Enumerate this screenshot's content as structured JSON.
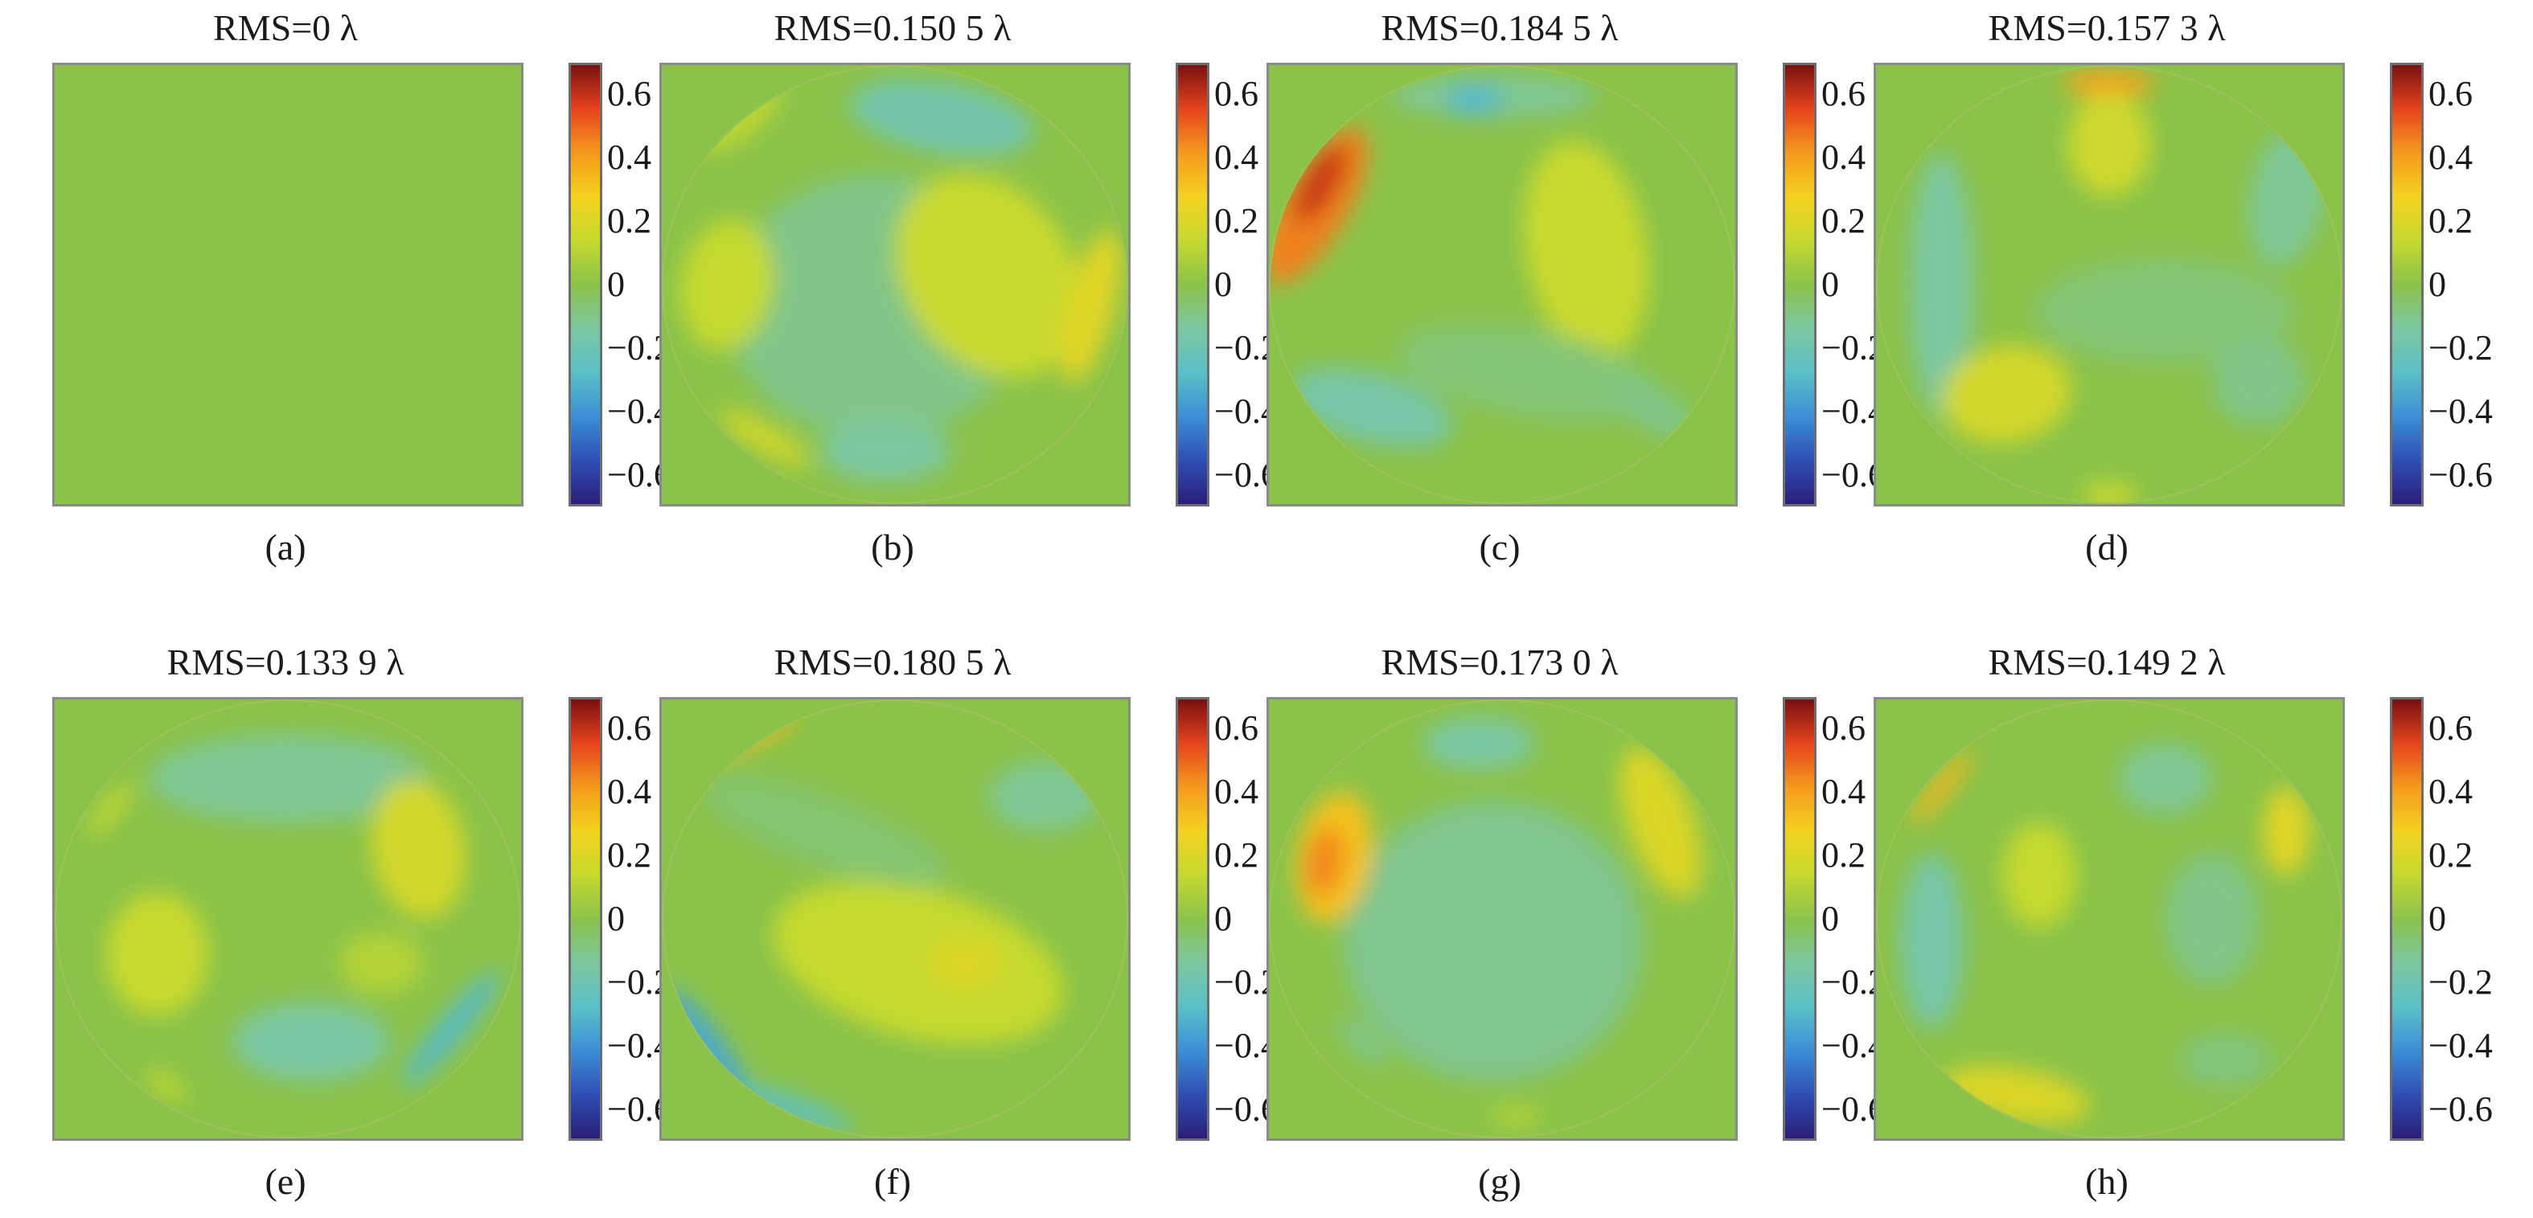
{
  "colors": {
    "background": "#8bc34a",
    "colormap": [
      "#2a1e78",
      "#2f4fb5",
      "#3b8fd6",
      "#5bc0c7",
      "#7cc6a0",
      "#8bc34a",
      "#c5d92f",
      "#f4d21f",
      "#f59a1e",
      "#e5431c",
      "#7a1010"
    ]
  },
  "colorbar_ticks": [
    "0.6",
    "0.4",
    "0.2",
    "0",
    "−0.2",
    "−0.4",
    "−0.6"
  ],
  "colorbar_values": [
    0.6,
    0.4,
    0.2,
    0,
    -0.2,
    -0.4,
    -0.6
  ],
  "chart_data": [
    {
      "type": "heatmap",
      "title": "RMS=0 λ",
      "label": "(a)",
      "rms": 0,
      "unit": "λ",
      "clim": [
        -0.7,
        0.7
      ],
      "aperture": "flat",
      "features": []
    },
    {
      "type": "heatmap",
      "title": "RMS=0.150 5 λ",
      "label": "(b)",
      "rms": 0.1505,
      "unit": "λ",
      "clim": [
        -0.7,
        0.7
      ],
      "aperture": "circle",
      "features": [
        {
          "cx": 0.46,
          "cy": 0.55,
          "rx": 0.32,
          "ry": 0.3,
          "angle": 0,
          "value": -0.1
        },
        {
          "cx": 0.6,
          "cy": 0.12,
          "rx": 0.2,
          "ry": 0.08,
          "angle": 10,
          "value": -0.18
        },
        {
          "cx": 0.16,
          "cy": 0.12,
          "rx": 0.11,
          "ry": 0.05,
          "angle": -35,
          "value": 0.12
        },
        {
          "cx": 0.14,
          "cy": 0.5,
          "rx": 0.1,
          "ry": 0.15,
          "angle": 10,
          "value": 0.14
        },
        {
          "cx": 0.7,
          "cy": 0.48,
          "rx": 0.18,
          "ry": 0.25,
          "angle": -35,
          "value": 0.15
        },
        {
          "cx": 0.92,
          "cy": 0.55,
          "rx": 0.05,
          "ry": 0.18,
          "angle": 15,
          "value": 0.22
        },
        {
          "cx": 0.22,
          "cy": 0.85,
          "rx": 0.11,
          "ry": 0.03,
          "angle": 30,
          "value": 0.18
        },
        {
          "cx": 0.48,
          "cy": 0.88,
          "rx": 0.14,
          "ry": 0.07,
          "angle": 0,
          "value": -0.14
        }
      ]
    },
    {
      "type": "heatmap",
      "title": "RMS=0.184 5 λ",
      "label": "(c)",
      "rms": 0.1845,
      "unit": "λ",
      "clim": [
        -0.7,
        0.7
      ],
      "aperture": "circle",
      "features": [
        {
          "cx": 0.1,
          "cy": 0.32,
          "rx": 0.07,
          "ry": 0.2,
          "angle": 30,
          "value": 0.46
        },
        {
          "cx": 0.11,
          "cy": 0.27,
          "rx": 0.035,
          "ry": 0.1,
          "angle": 30,
          "value": 0.6
        },
        {
          "cx": 0.48,
          "cy": 0.07,
          "rx": 0.22,
          "ry": 0.05,
          "angle": 0,
          "value": -0.12
        },
        {
          "cx": 0.44,
          "cy": 0.08,
          "rx": 0.06,
          "ry": 0.035,
          "angle": 0,
          "value": -0.3
        },
        {
          "cx": 0.68,
          "cy": 0.42,
          "rx": 0.13,
          "ry": 0.25,
          "angle": -10,
          "value": 0.15
        },
        {
          "cx": 0.22,
          "cy": 0.78,
          "rx": 0.18,
          "ry": 0.08,
          "angle": 15,
          "value": -0.16
        },
        {
          "cx": 0.55,
          "cy": 0.7,
          "rx": 0.28,
          "ry": 0.1,
          "angle": 10,
          "value": -0.07
        },
        {
          "cx": 0.82,
          "cy": 0.78,
          "rx": 0.1,
          "ry": 0.05,
          "angle": 30,
          "value": -0.1
        }
      ]
    },
    {
      "type": "heatmap",
      "title": "RMS=0.157 3 λ",
      "label": "(d)",
      "rms": 0.1573,
      "unit": "λ",
      "clim": [
        -0.7,
        0.7
      ],
      "aperture": "circle",
      "features": [
        {
          "cx": 0.5,
          "cy": 0.04,
          "rx": 0.1,
          "ry": 0.03,
          "angle": 0,
          "value": 0.4
        },
        {
          "cx": 0.5,
          "cy": 0.18,
          "rx": 0.09,
          "ry": 0.12,
          "angle": 0,
          "value": 0.16
        },
        {
          "cx": 0.14,
          "cy": 0.5,
          "rx": 0.07,
          "ry": 0.3,
          "angle": 0,
          "value": -0.14
        },
        {
          "cx": 0.88,
          "cy": 0.3,
          "rx": 0.08,
          "ry": 0.16,
          "angle": 10,
          "value": -0.12
        },
        {
          "cx": 0.28,
          "cy": 0.75,
          "rx": 0.14,
          "ry": 0.11,
          "angle": -10,
          "value": 0.18
        },
        {
          "cx": 0.62,
          "cy": 0.56,
          "rx": 0.28,
          "ry": 0.12,
          "angle": 0,
          "value": -0.07
        },
        {
          "cx": 0.82,
          "cy": 0.72,
          "rx": 0.1,
          "ry": 0.1,
          "angle": 0,
          "value": -0.1
        },
        {
          "cx": 0.5,
          "cy": 0.98,
          "rx": 0.06,
          "ry": 0.03,
          "angle": 0,
          "value": 0.15
        }
      ]
    },
    {
      "type": "heatmap",
      "title": "RMS=0.133 9 λ",
      "label": "(e)",
      "rms": 0.1339,
      "unit": "λ",
      "clim": [
        -0.7,
        0.7
      ],
      "aperture": "circle",
      "features": [
        {
          "cx": 0.5,
          "cy": 0.18,
          "rx": 0.3,
          "ry": 0.1,
          "angle": 0,
          "value": -0.12
        },
        {
          "cx": 0.78,
          "cy": 0.34,
          "rx": 0.1,
          "ry": 0.16,
          "angle": -10,
          "value": 0.18
        },
        {
          "cx": 0.22,
          "cy": 0.58,
          "rx": 0.11,
          "ry": 0.14,
          "angle": 0,
          "value": 0.15
        },
        {
          "cx": 0.12,
          "cy": 0.25,
          "rx": 0.07,
          "ry": 0.02,
          "angle": -50,
          "value": 0.15
        },
        {
          "cx": 0.55,
          "cy": 0.78,
          "rx": 0.17,
          "ry": 0.09,
          "angle": 0,
          "value": -0.15
        },
        {
          "cx": 0.7,
          "cy": 0.6,
          "rx": 0.09,
          "ry": 0.07,
          "angle": 0,
          "value": 0.1
        },
        {
          "cx": 0.85,
          "cy": 0.75,
          "rx": 0.16,
          "ry": 0.03,
          "angle": -50,
          "value": -0.3
        },
        {
          "cx": 0.24,
          "cy": 0.88,
          "rx": 0.05,
          "ry": 0.02,
          "angle": 35,
          "value": 0.15
        }
      ]
    },
    {
      "type": "heatmap",
      "title": "RMS=0.180 5 λ",
      "label": "(f)",
      "rms": 0.1805,
      "unit": "λ",
      "clim": [
        -0.7,
        0.7
      ],
      "aperture": "circle",
      "features": [
        {
          "cx": 0.2,
          "cy": 0.08,
          "rx": 0.1,
          "ry": 0.02,
          "angle": -25,
          "value": 0.35
        },
        {
          "cx": 0.55,
          "cy": 0.6,
          "rx": 0.32,
          "ry": 0.17,
          "angle": 15,
          "value": 0.14
        },
        {
          "cx": 0.65,
          "cy": 0.6,
          "rx": 0.08,
          "ry": 0.06,
          "angle": 0,
          "value": 0.2
        },
        {
          "cx": 0.82,
          "cy": 0.22,
          "rx": 0.12,
          "ry": 0.08,
          "angle": 0,
          "value": -0.12
        },
        {
          "cx": 0.35,
          "cy": 0.3,
          "rx": 0.28,
          "ry": 0.08,
          "angle": 20,
          "value": -0.06
        },
        {
          "cx": 0.1,
          "cy": 0.8,
          "rx": 0.16,
          "ry": 0.04,
          "angle": 55,
          "value": -0.35
        },
        {
          "cx": 0.28,
          "cy": 0.93,
          "rx": 0.14,
          "ry": 0.025,
          "angle": 20,
          "value": -0.28
        }
      ]
    },
    {
      "type": "heatmap",
      "title": "RMS=0.173 0 λ",
      "label": "(g)",
      "rms": 0.173,
      "unit": "λ",
      "clim": [
        -0.7,
        0.7
      ],
      "aperture": "circle",
      "features": [
        {
          "cx": 0.48,
          "cy": 0.55,
          "rx": 0.32,
          "ry": 0.32,
          "angle": 0,
          "value": -0.11
        },
        {
          "cx": 0.14,
          "cy": 0.36,
          "rx": 0.08,
          "ry": 0.15,
          "angle": 10,
          "value": 0.32
        },
        {
          "cx": 0.12,
          "cy": 0.37,
          "rx": 0.04,
          "ry": 0.08,
          "angle": 10,
          "value": 0.45
        },
        {
          "cx": 0.84,
          "cy": 0.28,
          "rx": 0.07,
          "ry": 0.18,
          "angle": -20,
          "value": 0.2
        },
        {
          "cx": 0.45,
          "cy": 0.1,
          "rx": 0.12,
          "ry": 0.06,
          "angle": 0,
          "value": -0.15
        },
        {
          "cx": 0.2,
          "cy": 0.78,
          "rx": 0.07,
          "ry": 0.02,
          "angle": 45,
          "value": -0.14
        },
        {
          "cx": 0.53,
          "cy": 0.95,
          "rx": 0.05,
          "ry": 0.02,
          "angle": 0,
          "value": 0.12
        }
      ]
    },
    {
      "type": "heatmap",
      "title": "RMS=0.149 2 λ",
      "label": "(h)",
      "rms": 0.1492,
      "unit": "λ",
      "clim": [
        -0.7,
        0.7
      ],
      "aperture": "circle",
      "features": [
        {
          "cx": 0.14,
          "cy": 0.2,
          "rx": 0.1,
          "ry": 0.02,
          "angle": -50,
          "value": 0.35
        },
        {
          "cx": 0.12,
          "cy": 0.55,
          "rx": 0.07,
          "ry": 0.2,
          "angle": 0,
          "value": -0.16
        },
        {
          "cx": 0.88,
          "cy": 0.3,
          "rx": 0.05,
          "ry": 0.1,
          "angle": 0,
          "value": 0.22
        },
        {
          "cx": 0.35,
          "cy": 0.4,
          "rx": 0.08,
          "ry": 0.12,
          "angle": 0,
          "value": 0.14
        },
        {
          "cx": 0.62,
          "cy": 0.18,
          "rx": 0.1,
          "ry": 0.08,
          "angle": 0,
          "value": -0.12
        },
        {
          "cx": 0.72,
          "cy": 0.5,
          "rx": 0.1,
          "ry": 0.15,
          "angle": 0,
          "value": -0.1
        },
        {
          "cx": 0.3,
          "cy": 0.9,
          "rx": 0.16,
          "ry": 0.06,
          "angle": 10,
          "value": 0.2
        },
        {
          "cx": 0.75,
          "cy": 0.82,
          "rx": 0.1,
          "ry": 0.06,
          "angle": 0,
          "value": -0.08
        }
      ]
    }
  ]
}
